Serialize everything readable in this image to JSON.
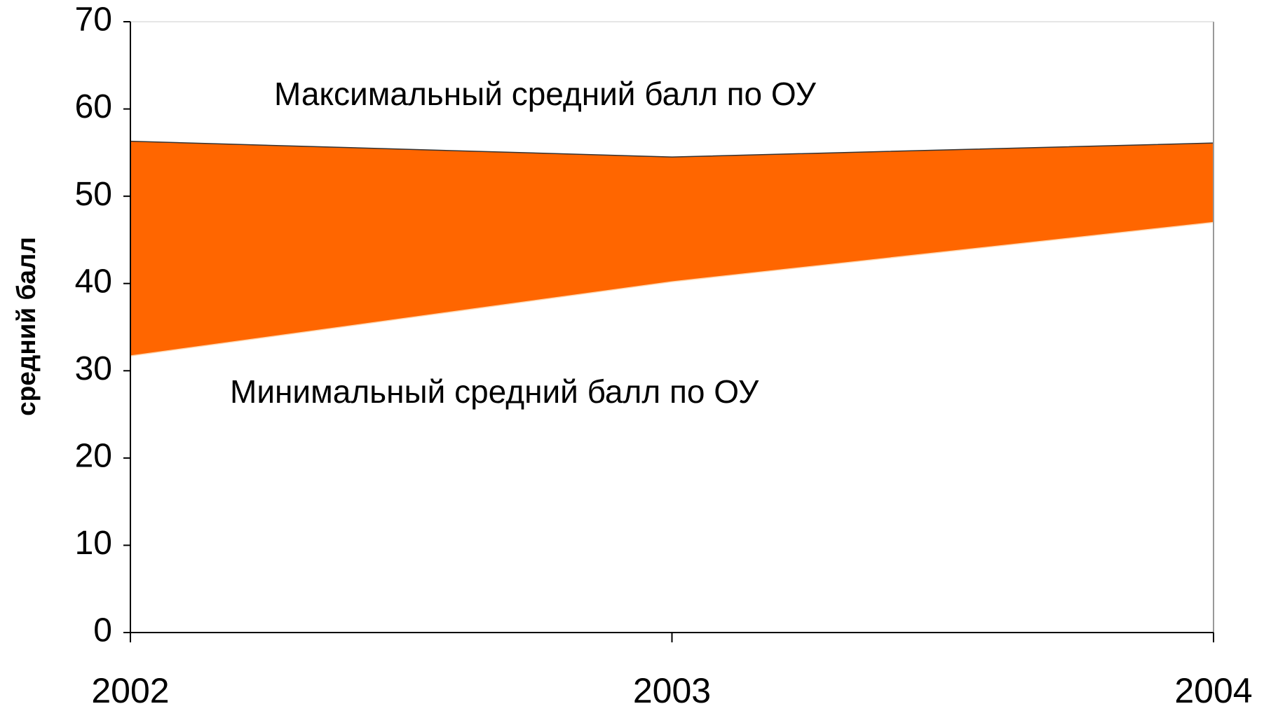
{
  "chart_data": {
    "type": "area_band",
    "ylabel": "средний балл",
    "categories": [
      "2002",
      "2003",
      "2004"
    ],
    "series": [
      {
        "name": "Максимальный средний балл по ОУ",
        "color": "#ff6600",
        "values": [
          56.3,
          54.5,
          56.1
        ]
      },
      {
        "name": "Минимальный средний балл по ОУ",
        "color": "#ff6600",
        "values": [
          31.7,
          40.2,
          47.0
        ]
      }
    ],
    "ylim": [
      0,
      70
    ],
    "yticks": [
      0,
      10,
      20,
      30,
      40,
      50,
      60,
      70
    ],
    "grid": false
  }
}
